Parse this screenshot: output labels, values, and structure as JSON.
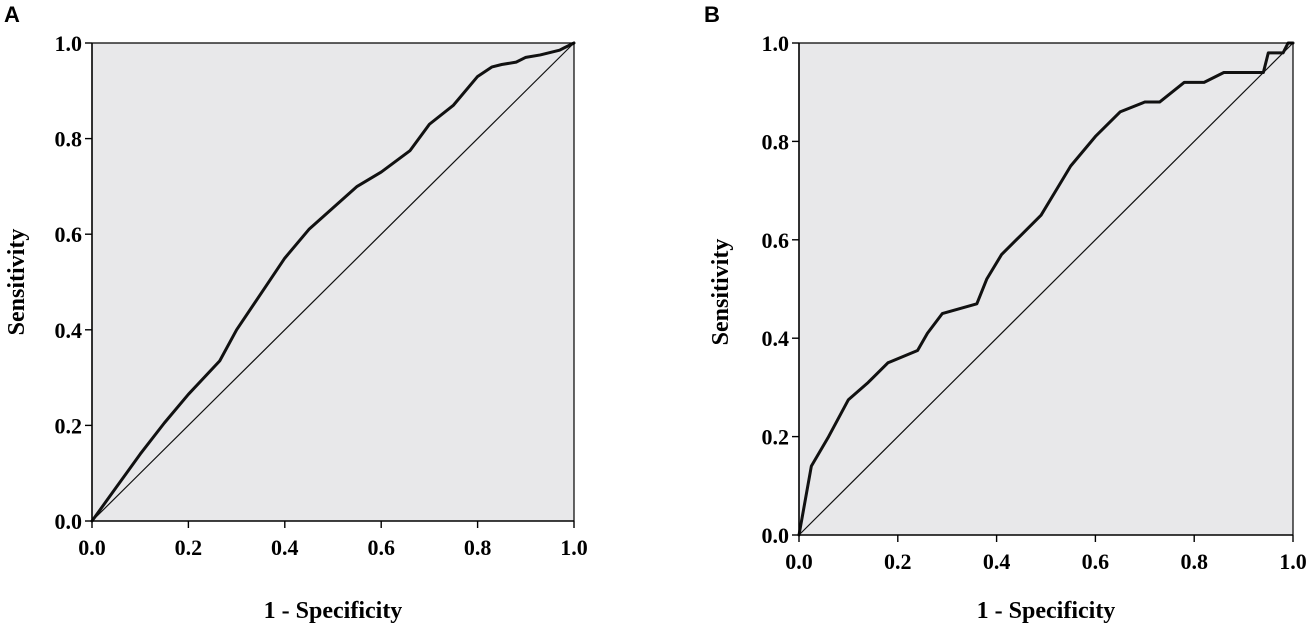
{
  "figure": {
    "panels": [
      {
        "letter": "A"
      },
      {
        "letter": "B"
      }
    ]
  },
  "chart_data": [
    {
      "type": "line",
      "panel": "A",
      "xlabel": "1 - Specificity",
      "ylabel": "Sensitivity",
      "xlim": [
        0,
        1
      ],
      "ylim": [
        0,
        1
      ],
      "xticks": [
        "0.0",
        "0.2",
        "0.4",
        "0.6",
        "0.8",
        "1.0"
      ],
      "yticks": [
        "0.0",
        "0.2",
        "0.4",
        "0.6",
        "0.8",
        "1.0"
      ],
      "background": "#e8e8ea",
      "grid": false,
      "series": [
        {
          "role": "roc-curve",
          "x": [
            0.0,
            0.05,
            0.1,
            0.15,
            0.2,
            0.265,
            0.3,
            0.36,
            0.4,
            0.45,
            0.5,
            0.55,
            0.6,
            0.66,
            0.7,
            0.75,
            0.8,
            0.83,
            0.85,
            0.88,
            0.9,
            0.93,
            0.95,
            0.97,
            0.98,
            0.99,
            1.0
          ],
          "y": [
            0.0,
            0.07,
            0.14,
            0.205,
            0.265,
            0.335,
            0.4,
            0.49,
            0.55,
            0.61,
            0.655,
            0.7,
            0.73,
            0.775,
            0.83,
            0.87,
            0.93,
            0.95,
            0.955,
            0.96,
            0.97,
            0.975,
            0.98,
            0.985,
            0.99,
            0.995,
            1.0
          ]
        },
        {
          "role": "reference-line",
          "x": [
            0,
            1
          ],
          "y": [
            0,
            1
          ]
        }
      ]
    },
    {
      "type": "line",
      "panel": "B",
      "xlabel": "1 - Specificity",
      "ylabel": "Sensitivity",
      "xlim": [
        0,
        1
      ],
      "ylim": [
        0,
        1
      ],
      "xticks": [
        "0.0",
        "0.2",
        "0.4",
        "0.6",
        "0.8",
        "1.0"
      ],
      "yticks": [
        "0.0",
        "0.2",
        "0.4",
        "0.6",
        "0.8",
        "1.0"
      ],
      "background": "#e8e8ea",
      "grid": false,
      "series": [
        {
          "role": "roc-curve",
          "x": [
            0.0,
            0.025,
            0.06,
            0.1,
            0.14,
            0.18,
            0.24,
            0.26,
            0.29,
            0.36,
            0.38,
            0.41,
            0.45,
            0.49,
            0.52,
            0.55,
            0.6,
            0.65,
            0.7,
            0.73,
            0.78,
            0.82,
            0.86,
            0.9,
            0.94,
            0.95,
            0.98,
            0.99,
            1.0
          ],
          "y": [
            0.0,
            0.14,
            0.2,
            0.275,
            0.31,
            0.35,
            0.375,
            0.41,
            0.45,
            0.47,
            0.52,
            0.57,
            0.61,
            0.65,
            0.7,
            0.75,
            0.81,
            0.86,
            0.88,
            0.88,
            0.92,
            0.92,
            0.94,
            0.94,
            0.94,
            0.98,
            0.98,
            1.0,
            1.0
          ]
        },
        {
          "role": "reference-line",
          "x": [
            0,
            1
          ],
          "y": [
            0,
            1
          ]
        }
      ]
    }
  ]
}
